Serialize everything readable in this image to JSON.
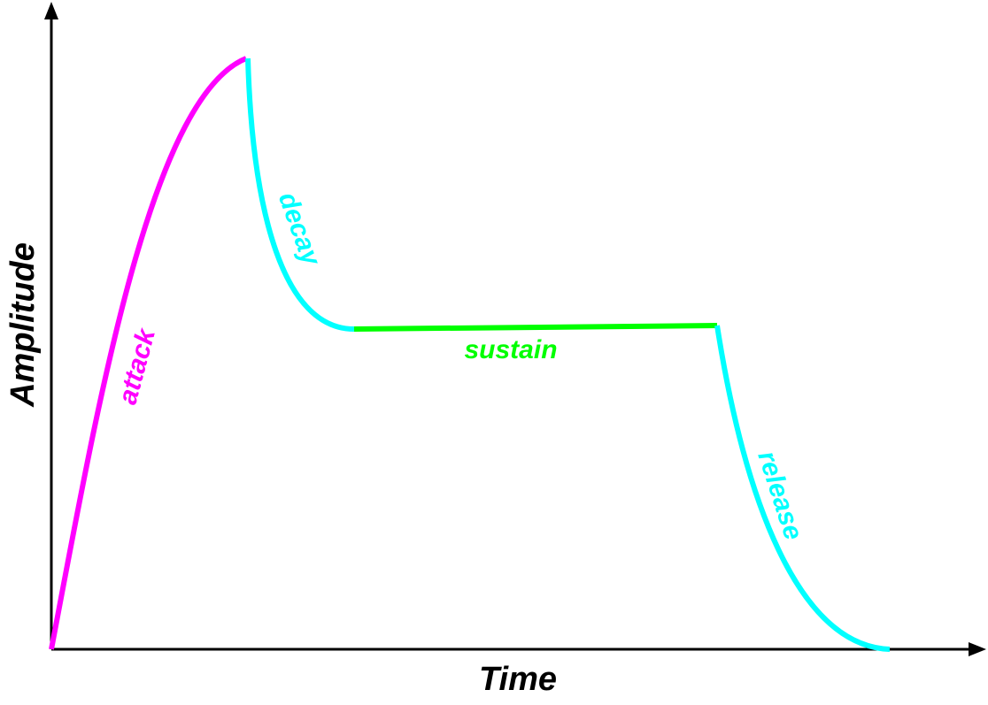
{
  "axes": {
    "x_label": "Time",
    "y_label": "Amplitude"
  },
  "phases": {
    "attack": {
      "label": "attack",
      "color": "#ff00ff"
    },
    "decay": {
      "label": "decay",
      "color": "#00ffff"
    },
    "sustain": {
      "label": "sustain",
      "color": "#00ff00"
    },
    "release": {
      "label": "release",
      "color": "#00ffff"
    }
  },
  "axis_color": "#000000"
}
